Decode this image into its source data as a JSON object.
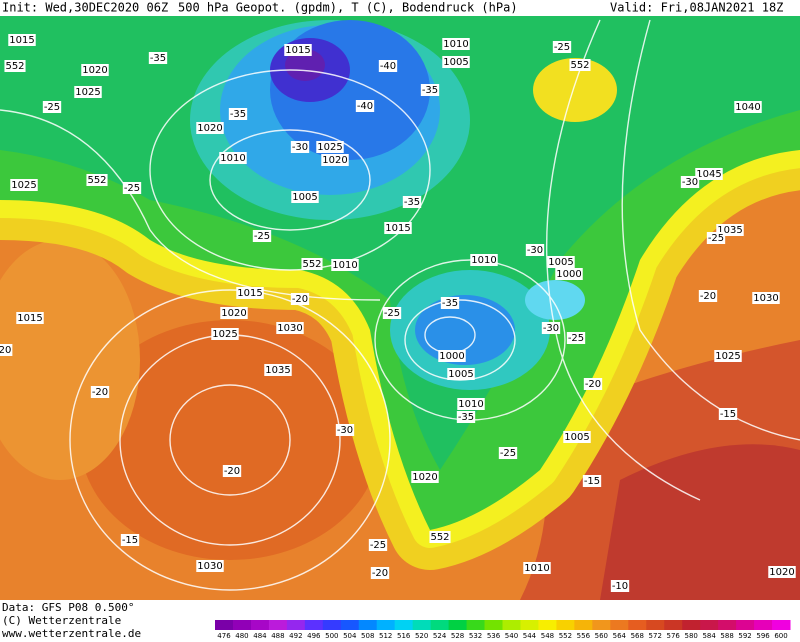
{
  "header": {
    "init": "Init: Wed,30DEC2020 06Z",
    "title": "500 hPa Geopot. (gpdm), T (C), Bodendruck (hPa)",
    "valid": "Valid: Fri,08JAN2021 18Z"
  },
  "map": {
    "labels": [
      "1015",
      "552",
      "1020",
      "1025",
      "-25",
      "-35",
      "1020",
      "-35",
      "1010",
      "-30",
      "1025",
      "1020",
      "1005",
      "1015",
      "-40",
      "-35",
      "-40",
      "1010",
      "1005",
      "-25",
      "552",
      "1040",
      "1025",
      "552",
      "-25",
      "-25",
      "552",
      "1010",
      "1015",
      "-35",
      "1015",
      "-20",
      "1020",
      "1030",
      "1025",
      "1015",
      "20",
      "1035",
      "-20",
      "-30",
      "-20",
      "-15",
      "1030",
      "-25",
      "-20",
      "552",
      "1020",
      "-25",
      "-35",
      "1000",
      "1005",
      "1010",
      "-35",
      "-25",
      "1005",
      "-15",
      "1010",
      "-10",
      "1020",
      "-15",
      "1025",
      "-20",
      "1030",
      "1035",
      "-25",
      "1045",
      "-30",
      "1010",
      "-30",
      "1005",
      "1000",
      "-30",
      "-25",
      "-20"
    ]
  },
  "colorbar": {
    "labels": [
      476,
      480,
      484,
      488,
      492,
      496,
      500,
      504,
      508,
      512,
      516,
      520,
      524,
      528,
      532,
      536,
      540,
      544,
      548,
      552,
      556,
      560,
      564,
      568,
      572,
      576,
      580,
      584,
      588,
      592,
      596,
      600
    ]
  },
  "footer": {
    "data": "Data: GFS P08 0.500°",
    "copyright": "(C) Wetterzentrale",
    "url": "www.wetterzentrale.de"
  }
}
